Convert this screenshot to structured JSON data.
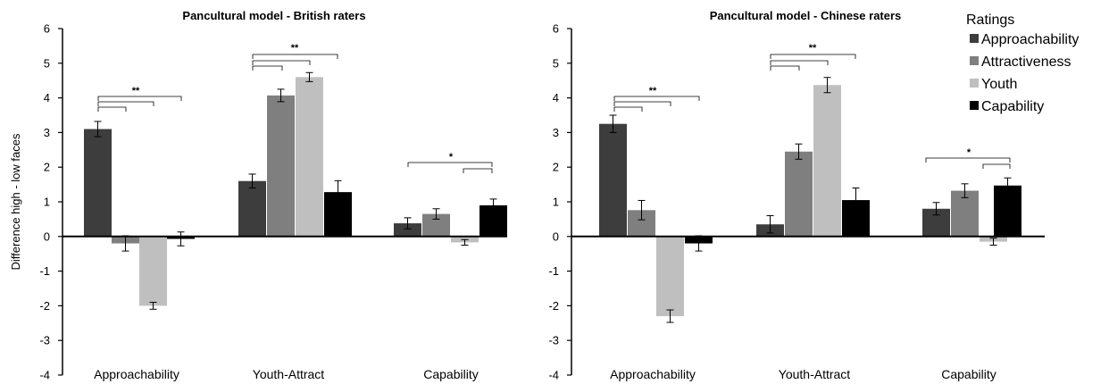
{
  "chart_data": [
    {
      "type": "bar",
      "title": "Pancultural model - British raters",
      "ylabel": "Difference high - low faces",
      "ylim": [
        -4,
        6
      ],
      "yticks": [
        "-4",
        "-3",
        "-2",
        "-1",
        "0",
        "1",
        "2",
        "3",
        "4",
        "5",
        "6"
      ],
      "categories": [
        "Approachability",
        "Youth-Attract",
        "Capability"
      ],
      "series": [
        {
          "name": "Approachability",
          "values": [
            3.1,
            1.6,
            0.38
          ],
          "errors": [
            0.22,
            0.2,
            0.16
          ]
        },
        {
          "name": "Attractiveness",
          "values": [
            -0.2,
            4.07,
            0.65
          ],
          "errors": [
            0.22,
            0.18,
            0.15
          ]
        },
        {
          "name": "Youth",
          "values": [
            -2.0,
            4.6,
            -0.17
          ],
          "errors": [
            0.1,
            0.13,
            0.08
          ]
        },
        {
          "name": "Capability",
          "values": [
            -0.07,
            1.28,
            0.9
          ],
          "errors": [
            0.2,
            0.33,
            0.18
          ]
        }
      ],
      "annotations": [
        {
          "category": "Approachability",
          "label": "**"
        },
        {
          "category": "Youth-Attract",
          "label": "**"
        },
        {
          "category": "Capability",
          "label": "*"
        }
      ]
    },
    {
      "type": "bar",
      "title": "Pancultural model - Chinese raters",
      "ylim": [
        -4,
        6
      ],
      "yticks": [
        "-4",
        "-3",
        "-2",
        "-1",
        "0",
        "1",
        "2",
        "3",
        "4",
        "5",
        "6"
      ],
      "categories": [
        "Approachability",
        "Youth-Attract",
        "Capability"
      ],
      "series": [
        {
          "name": "Approachability",
          "values": [
            3.25,
            0.35,
            0.8
          ],
          "errors": [
            0.25,
            0.25,
            0.18
          ]
        },
        {
          "name": "Attractiveness",
          "values": [
            0.76,
            2.45,
            1.32
          ],
          "errors": [
            0.28,
            0.22,
            0.2
          ]
        },
        {
          "name": "Youth",
          "values": [
            -2.3,
            4.37,
            -0.15
          ],
          "errors": [
            0.18,
            0.22,
            0.1
          ]
        },
        {
          "name": "Capability",
          "values": [
            -0.2,
            1.05,
            1.47
          ],
          "errors": [
            0.22,
            0.35,
            0.22
          ]
        }
      ],
      "annotations": [
        {
          "category": "Approachability",
          "label": "**"
        },
        {
          "category": "Youth-Attract",
          "label": "**"
        },
        {
          "category": "Capability",
          "label": "*"
        }
      ]
    }
  ],
  "legend": {
    "title": "Ratings",
    "placement": "top-right",
    "items": [
      {
        "label": "Approachability",
        "color": "#3d3d3d"
      },
      {
        "label": "Attractiveness",
        "color": "#7f7f7f"
      },
      {
        "label": "Youth",
        "color": "#bfbfbf"
      },
      {
        "label": "Capability",
        "color": "#000000"
      }
    ]
  }
}
